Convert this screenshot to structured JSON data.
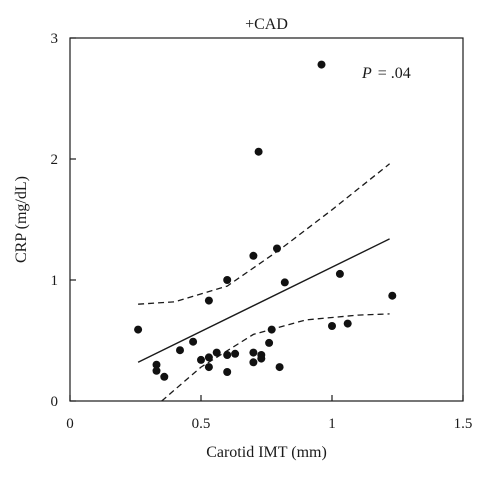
{
  "chart_data": {
    "type": "scatter",
    "title": "+CAD",
    "xlabel": "Carotid IMT (mm)",
    "ylabel": "CRP (mg/dL)",
    "xlim": [
      0,
      1.5
    ],
    "ylim": [
      0,
      3
    ],
    "xticks": [
      0,
      0.5,
      1,
      1.5
    ],
    "xtick_labels": [
      "0",
      "0.5",
      "1",
      "1.5"
    ],
    "yticks": [
      0,
      1,
      2,
      3
    ],
    "ytick_labels": [
      "0",
      "1",
      "2",
      "3"
    ],
    "grid": false,
    "annotation": {
      "p_symbol": "P",
      "p_text": "= .04"
    },
    "points": [
      {
        "x": 0.26,
        "y": 0.59
      },
      {
        "x": 0.33,
        "y": 0.3
      },
      {
        "x": 0.33,
        "y": 0.25
      },
      {
        "x": 0.36,
        "y": 0.2
      },
      {
        "x": 0.42,
        "y": 0.42
      },
      {
        "x": 0.47,
        "y": 0.49
      },
      {
        "x": 0.5,
        "y": 0.34
      },
      {
        "x": 0.53,
        "y": 0.83
      },
      {
        "x": 0.53,
        "y": 0.36
      },
      {
        "x": 0.53,
        "y": 0.28
      },
      {
        "x": 0.56,
        "y": 0.4
      },
      {
        "x": 0.6,
        "y": 1.0
      },
      {
        "x": 0.6,
        "y": 0.38
      },
      {
        "x": 0.6,
        "y": 0.24
      },
      {
        "x": 0.63,
        "y": 0.39
      },
      {
        "x": 0.7,
        "y": 1.2
      },
      {
        "x": 0.7,
        "y": 0.4
      },
      {
        "x": 0.7,
        "y": 0.32
      },
      {
        "x": 0.72,
        "y": 2.06
      },
      {
        "x": 0.73,
        "y": 0.38
      },
      {
        "x": 0.73,
        "y": 0.35
      },
      {
        "x": 0.76,
        "y": 0.48
      },
      {
        "x": 0.77,
        "y": 0.59
      },
      {
        "x": 0.79,
        "y": 1.26
      },
      {
        "x": 0.8,
        "y": 0.28
      },
      {
        "x": 0.82,
        "y": 0.98
      },
      {
        "x": 0.96,
        "y": 2.78
      },
      {
        "x": 1.0,
        "y": 0.62
      },
      {
        "x": 1.03,
        "y": 1.05
      },
      {
        "x": 1.06,
        "y": 0.64
      },
      {
        "x": 1.23,
        "y": 0.87
      }
    ],
    "fit_line": {
      "x": [
        0.26,
        1.22
      ],
      "y": [
        0.32,
        1.34
      ]
    },
    "ci_upper": {
      "x": [
        0.26,
        0.4,
        0.6,
        0.8,
        1.0,
        1.22
      ],
      "y": [
        0.8,
        0.82,
        0.95,
        1.25,
        1.58,
        1.96
      ]
    },
    "ci_lower": {
      "x": [
        0.35,
        0.5,
        0.7,
        0.9,
        1.1,
        1.22
      ],
      "y": [
        0.0,
        0.28,
        0.55,
        0.67,
        0.71,
        0.72
      ]
    }
  }
}
